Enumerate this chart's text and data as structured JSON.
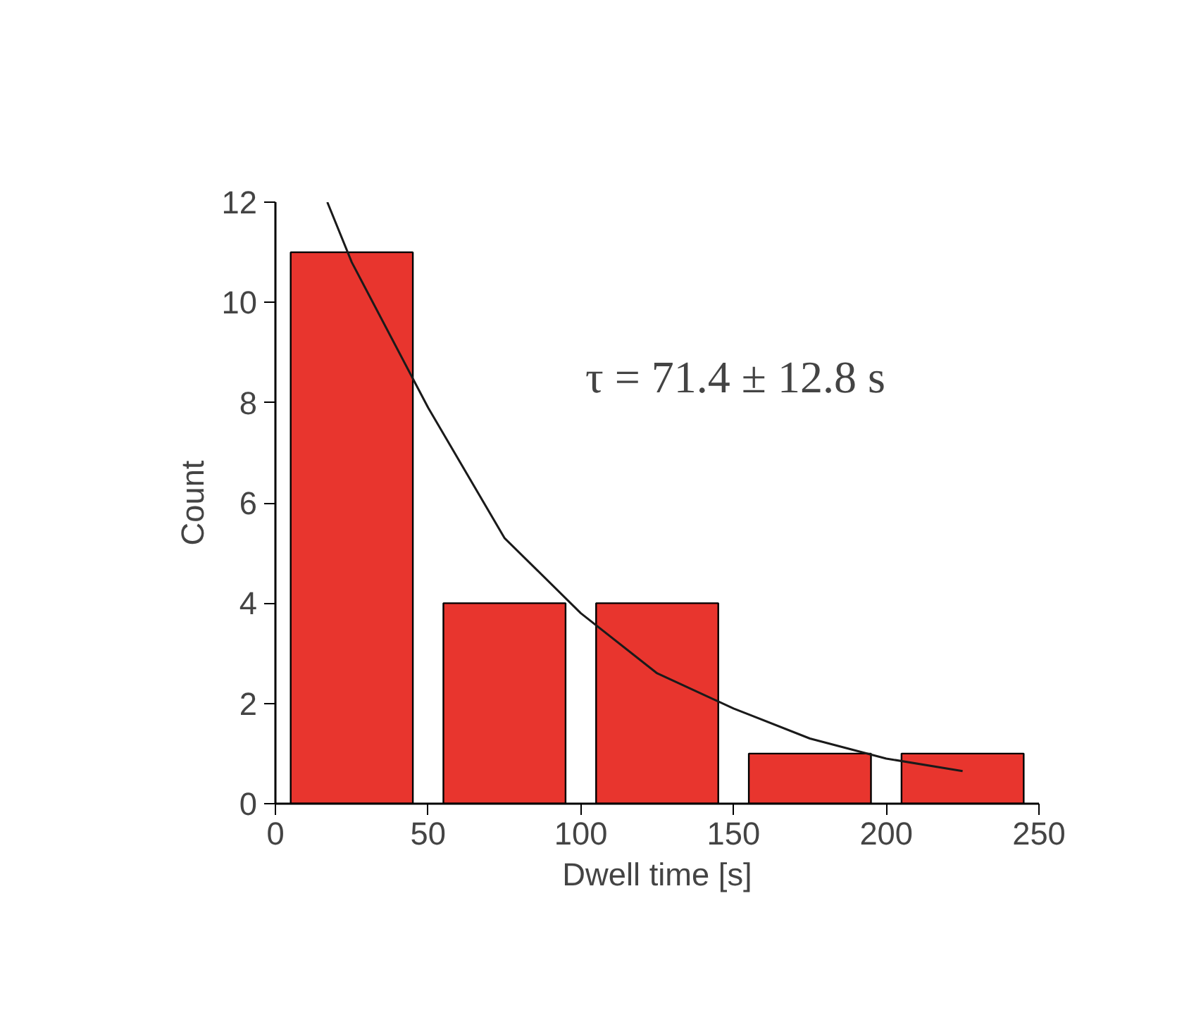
{
  "chart_data": {
    "type": "histogram",
    "xlabel": "Dwell time [s]",
    "ylabel": "Count",
    "bins": [
      0,
      50,
      100,
      150,
      200,
      250
    ],
    "values": [
      11,
      4,
      4,
      1,
      1
    ],
    "color": "#e8352e",
    "series": [
      {
        "type": "line",
        "color": "#1a1a1a",
        "x": [
          17,
          25,
          50,
          75,
          100,
          125,
          150,
          175,
          200,
          225
        ],
        "values": [
          12.0,
          10.8,
          7.9,
          5.3,
          3.8,
          2.6,
          1.9,
          1.3,
          0.9,
          0.65
        ]
      }
    ],
    "annotations": [
      "τ = 71.4 ± 12.8 s"
    ],
    "xlim": [
      0,
      250
    ],
    "xticks": [
      0,
      50,
      100,
      150,
      200,
      250
    ],
    "ylim": [
      0,
      12
    ],
    "yticks": [
      0,
      2,
      4,
      6,
      8,
      10,
      12
    ],
    "grid": false
  }
}
